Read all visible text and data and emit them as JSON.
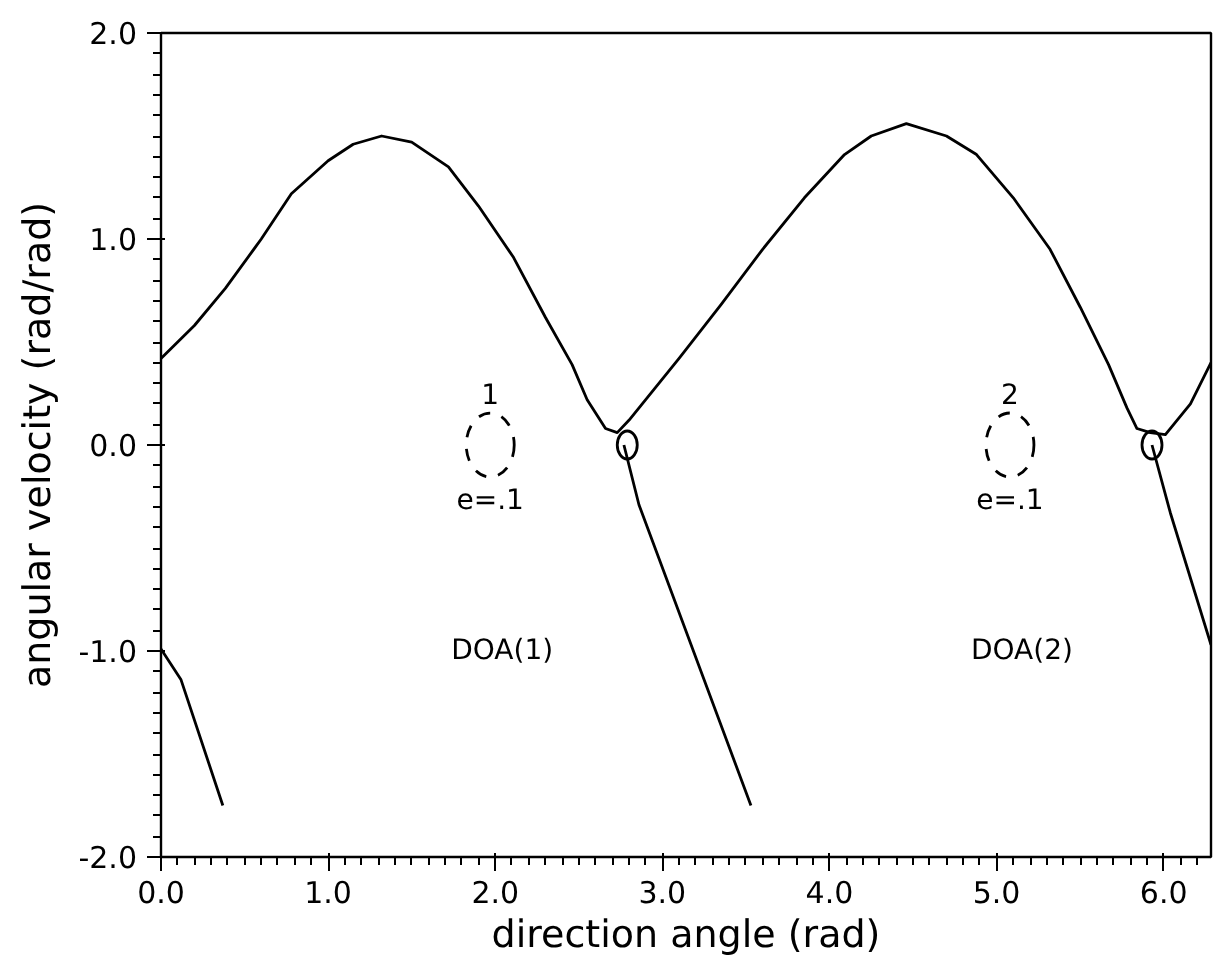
{
  "chart_data": {
    "type": "line",
    "xlabel": "direction angle (rad)",
    "ylabel": "angular velocity (rad/rad)",
    "xlim": [
      0,
      6.283
    ],
    "ylim": [
      -2.0,
      2.0
    ],
    "xticks": [
      {
        "value": 0,
        "label": "0.0"
      },
      {
        "value": 1,
        "label": "1.0"
      },
      {
        "value": 2,
        "label": "2.0"
      },
      {
        "value": 3,
        "label": "3.0"
      },
      {
        "value": 4,
        "label": "4.0"
      },
      {
        "value": 5,
        "label": "5.0"
      },
      {
        "value": 6,
        "label": "6.0"
      }
    ],
    "yticks": [
      {
        "value": -2,
        "label": "-2.0"
      },
      {
        "value": -1,
        "label": "-1.0"
      },
      {
        "value": 0,
        "label": "0.0"
      },
      {
        "value": 1,
        "label": "1.0"
      },
      {
        "value": 2,
        "label": "2.0"
      }
    ],
    "grid": false,
    "series": [
      {
        "color": "#000000",
        "x": [
          0,
          0.2,
          0.385,
          0.6,
          0.78,
          1.0,
          1.15,
          1.32,
          1.5,
          1.72,
          1.9,
          2.11,
          2.3,
          2.46,
          2.55,
          2.66,
          2.73,
          2.8,
          3.1,
          3.35,
          3.6,
          3.85,
          4.09,
          4.25,
          4.46,
          4.7,
          4.88,
          5.1,
          5.32,
          5.5,
          5.67,
          5.78,
          5.84,
          5.92,
          6.01,
          6.16,
          6.283
        ],
        "values": [
          0.42,
          0.58,
          0.76,
          1.0,
          1.22,
          1.38,
          1.46,
          1.5,
          1.47,
          1.35,
          1.16,
          0.91,
          0.62,
          0.39,
          0.22,
          0.08,
          0.06,
          0.12,
          0.42,
          0.68,
          0.95,
          1.2,
          1.41,
          1.5,
          1.56,
          1.5,
          1.41,
          1.2,
          0.95,
          0.67,
          0.39,
          0.18,
          0.08,
          0.06,
          0.05,
          0.2,
          0.4
        ]
      },
      {
        "color": "#000000",
        "x": [
          2.77,
          2.86,
          3.53
        ],
        "values": [
          0,
          -0.29,
          -1.75
        ]
      },
      {
        "color": "#000000",
        "x": [
          5.93,
          6.04,
          6.283
        ],
        "values": [
          0,
          -0.33,
          -0.97
        ]
      },
      {
        "color": "#000000",
        "x": [
          0,
          0.12,
          0.37
        ],
        "values": [
          -0.99,
          -1.14,
          -1.75
        ]
      },
      {
        "type": "scatter",
        "marker": "circle",
        "color": "#000000",
        "x": [
          2.79,
          5.93
        ],
        "values": [
          0,
          0
        ]
      },
      {
        "type": "scatter",
        "marker": "circle",
        "line_style": "dashed",
        "color": "#000000",
        "x": [
          1.97,
          5.08
        ],
        "values": [
          0,
          0
        ]
      }
    ],
    "annotations": [
      "1",
      "e=.1",
      "2",
      "e=.1",
      "DOA(1)",
      "DOA(2)"
    ]
  }
}
